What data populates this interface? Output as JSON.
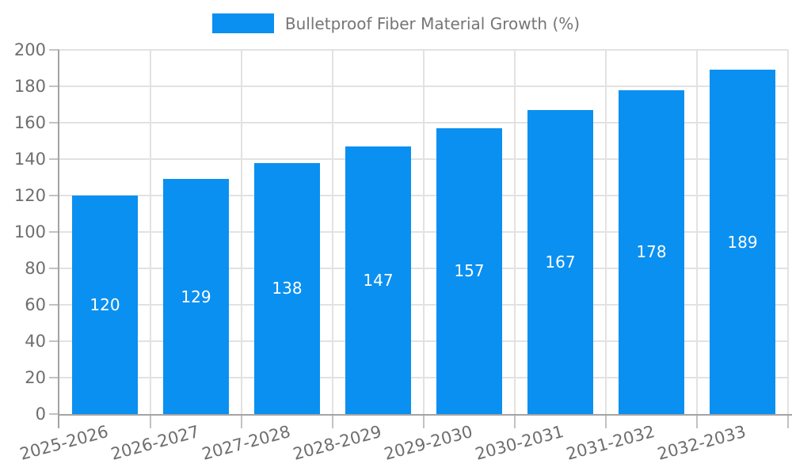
{
  "chart_data": {
    "type": "bar",
    "title": "Bulletproof Fiber Material Growth (%)",
    "categories": [
      "2025-2026",
      "2026-2027",
      "2027-2028",
      "2028-2029",
      "2029-2030",
      "2030-2031",
      "2031-2032",
      "2032-2033"
    ],
    "values": [
      120,
      129,
      138,
      147,
      157,
      167,
      178,
      189
    ],
    "xlabel": "",
    "ylabel": "",
    "ylim": [
      0,
      200
    ],
    "ytick_step": 20,
    "ytick_labels": [
      "0",
      "20",
      "40",
      "60",
      "80",
      "100",
      "120",
      "140",
      "160",
      "180",
      "200"
    ],
    "grid": true,
    "legend_position": "top-center",
    "bar_value_labels_shown": true,
    "xlabel_rotation_deg": -15
  },
  "colors": {
    "background": "#ffffff",
    "bar": "#0a90f0",
    "bar_label": "#ffffff",
    "grid": "#e2e2e2",
    "tick": "#c2c2c2",
    "axis": "#a3a3a3",
    "text": "#6e6e6e",
    "legend_text": "#757575"
  }
}
